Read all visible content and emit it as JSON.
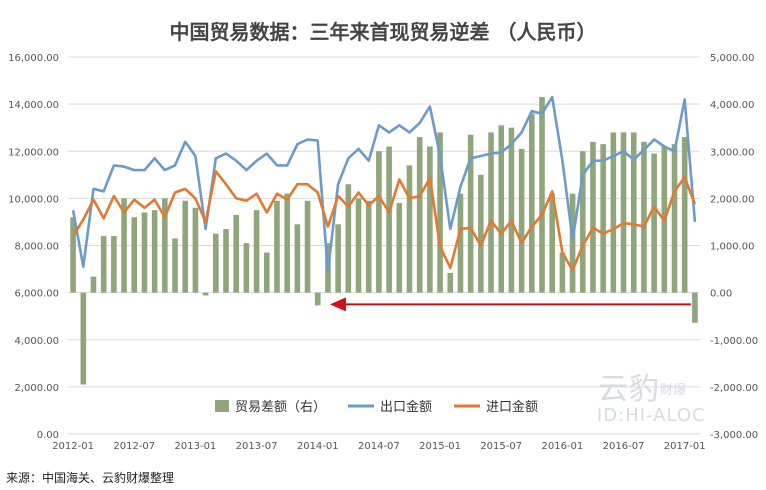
{
  "title": "中国贸易数据：三年来首现贸易逆差 （人民币）",
  "source": "来源：中国海关、云豹财爆整理",
  "watermark": {
    "brand": "云豹",
    "sub": "财爆",
    "id": "ID:HI-ALOC"
  },
  "chart_data": {
    "type": "bar+line",
    "x_tick_labels": [
      "2012-01",
      "2012-07",
      "2013-01",
      "2013-07",
      "2014-01",
      "2014-07",
      "2015-01",
      "2015-07",
      "2016-01",
      "2016-07",
      "2017-01"
    ],
    "months": [
      "2012-01",
      "2012-02",
      "2012-03",
      "2012-04",
      "2012-05",
      "2012-06",
      "2012-07",
      "2012-08",
      "2012-09",
      "2012-10",
      "2012-11",
      "2012-12",
      "2013-01",
      "2013-02",
      "2013-03",
      "2013-04",
      "2013-05",
      "2013-06",
      "2013-07",
      "2013-08",
      "2013-09",
      "2013-10",
      "2013-11",
      "2013-12",
      "2014-01",
      "2014-02",
      "2014-03",
      "2014-04",
      "2014-05",
      "2014-06",
      "2014-07",
      "2014-08",
      "2014-09",
      "2014-10",
      "2014-11",
      "2014-12",
      "2015-01",
      "2015-02",
      "2015-03",
      "2015-04",
      "2015-05",
      "2015-06",
      "2015-07",
      "2015-08",
      "2015-09",
      "2015-10",
      "2015-11",
      "2015-12",
      "2016-01",
      "2016-02",
      "2016-03",
      "2016-04",
      "2016-05",
      "2016-06",
      "2016-07",
      "2016-08",
      "2016-09",
      "2016-10",
      "2016-11",
      "2016-12",
      "2017-01",
      "2017-02"
    ],
    "y_left": {
      "min": 0,
      "max": 16000,
      "step": 2000,
      "tick_labels": [
        "0.00",
        "2,000.00",
        "4,000.00",
        "6,000.00",
        "8,000.00",
        "10,000.00",
        "12,000.00",
        "14,000.00",
        "16,000.00"
      ]
    },
    "y_right": {
      "min": -3000,
      "max": 5000,
      "step": 1000,
      "tick_labels": [
        "-3,000.00",
        "-2,000.00",
        "-1,000.00",
        "0.00",
        "1,000.00",
        "2,000.00",
        "3,000.00",
        "4,000.00",
        "5,000.00"
      ]
    },
    "grid": true,
    "legend_position": "bottom-center",
    "series": [
      {
        "name": "贸易差额（右）",
        "type": "bar",
        "axis": "right",
        "color": "#8fa67d",
        "values": [
          1600,
          -1950,
          340,
          1200,
          1200,
          2000,
          1600,
          1700,
          1750,
          2000,
          1150,
          1950,
          1800,
          -60,
          1250,
          1350,
          1650,
          1050,
          1750,
          850,
          1950,
          2100,
          1450,
          1950,
          -270,
          1050,
          1450,
          2300,
          2000,
          1950,
          3000,
          3100,
          1900,
          2700,
          3300,
          3100,
          3400,
          420,
          2100,
          3350,
          2500,
          3400,
          3550,
          3500,
          3050,
          3800,
          4150,
          2100,
          850,
          2100,
          3000,
          3200,
          3150,
          3400,
          3400,
          3400,
          3200,
          2950,
          3100,
          3150,
          3300,
          -640
        ]
      },
      {
        "name": "出口金额",
        "type": "line",
        "axis": "left",
        "color": "#6c9ac9",
        "values": [
          9500,
          7100,
          10400,
          10300,
          11400,
          11350,
          11200,
          11200,
          11700,
          11200,
          11400,
          12400,
          11800,
          8700,
          11700,
          11900,
          11600,
          11200,
          11600,
          11900,
          11400,
          11400,
          12300,
          12500,
          12450,
          6900,
          10600,
          11700,
          12100,
          11600,
          13100,
          12800,
          13100,
          12800,
          13200,
          13900,
          11800,
          8700,
          10500,
          11700,
          11800,
          11900,
          11950,
          12300,
          12800,
          13700,
          13600,
          14300,
          11600,
          8250,
          11000,
          11600,
          11600,
          11800,
          12000,
          11650,
          12050,
          12500,
          12200,
          12000,
          14200,
          9000
        ]
      },
      {
        "name": "进口金额",
        "type": "line",
        "axis": "left",
        "color": "#e07a33",
        "values": [
          8400,
          9100,
          9950,
          9150,
          10100,
          9400,
          9950,
          9600,
          9950,
          9200,
          10250,
          10400,
          10000,
          9000,
          11150,
          10600,
          10000,
          9900,
          10200,
          9400,
          10200,
          9950,
          10600,
          10600,
          10250,
          8800,
          10100,
          9650,
          10250,
          9700,
          10100,
          9400,
          10800,
          10000,
          10100,
          10850,
          7950,
          7050,
          8700,
          8750,
          8000,
          9050,
          8500,
          9050,
          8100,
          8800,
          9300,
          10300,
          7700,
          6950,
          8000,
          8750,
          8500,
          8700,
          8950,
          8900,
          8800,
          9650,
          9050,
          10300,
          10900,
          9750
        ]
      }
    ]
  }
}
